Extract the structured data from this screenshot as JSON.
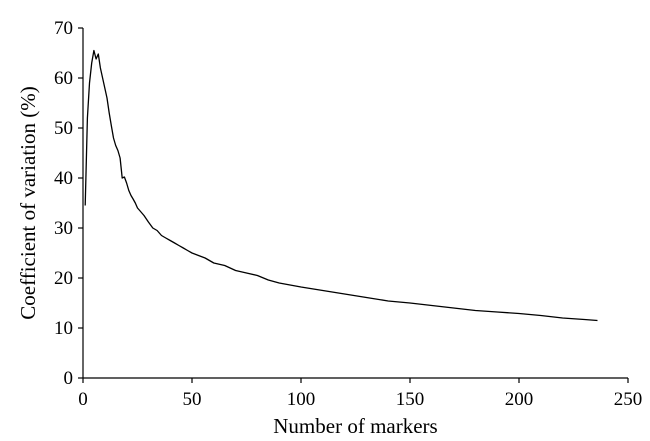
{
  "chart_data": {
    "type": "line",
    "title": "",
    "xlabel": "Number of markers",
    "ylabel": "Coefficient of variation (%)",
    "xlim": [
      0,
      250
    ],
    "ylim": [
      0,
      70
    ],
    "xticks": [
      0,
      50,
      100,
      150,
      200,
      250
    ],
    "yticks": [
      0,
      10,
      20,
      30,
      40,
      50,
      60,
      70
    ],
    "xtick_labels": [
      "0",
      "50",
      "100",
      "150",
      "200",
      "250"
    ],
    "ytick_labels": [
      "0",
      "10",
      "20",
      "30",
      "40",
      "50",
      "60",
      "70"
    ],
    "grid": false,
    "legend": "none",
    "line_color": "#000000",
    "series": [
      {
        "x": [
          1,
          2,
          3,
          4,
          5,
          6,
          7,
          8,
          9,
          10,
          11,
          12,
          13,
          14,
          15,
          16,
          17,
          18,
          19,
          20,
          21,
          22,
          23,
          24,
          25,
          26,
          28,
          30,
          32,
          34,
          36,
          38,
          40,
          42,
          44,
          46,
          48,
          50,
          53,
          56,
          60,
          65,
          70,
          75,
          80,
          85,
          90,
          95,
          100,
          110,
          120,
          130,
          140,
          150,
          160,
          170,
          180,
          190,
          200,
          210,
          220,
          230,
          236
        ],
        "y": [
          34.5,
          52,
          59,
          63,
          65.5,
          63.8,
          64.8,
          62,
          60,
          58,
          56,
          53,
          50.5,
          48,
          46.5,
          45.5,
          44,
          40,
          40.2,
          39,
          37.5,
          36.5,
          35.8,
          35,
          34,
          33.5,
          32.5,
          31.2,
          30,
          29.5,
          28.5,
          28,
          27.5,
          27,
          26.5,
          26,
          25.5,
          25,
          24.5,
          24,
          23,
          22.5,
          21.5,
          21,
          20.5,
          19.6,
          19,
          18.6,
          18.2,
          17.5,
          16.8,
          16.1,
          15.4,
          15,
          14.5,
          14,
          13.5,
          13.2,
          12.9,
          12.5,
          12,
          11.7,
          11.5
        ]
      }
    ]
  }
}
